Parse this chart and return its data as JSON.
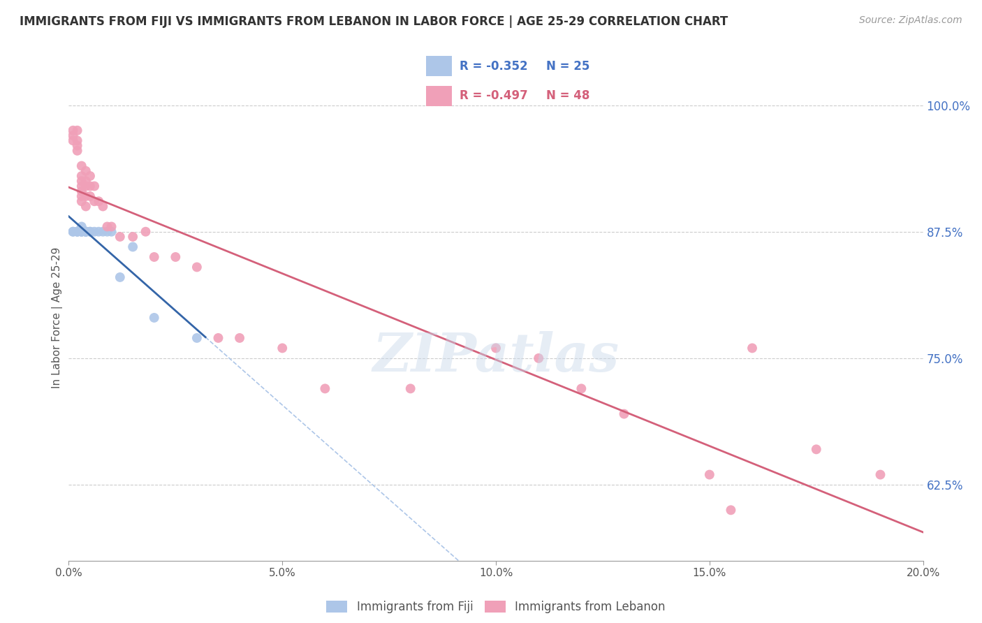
{
  "title": "IMMIGRANTS FROM FIJI VS IMMIGRANTS FROM LEBANON IN LABOR FORCE | AGE 25-29 CORRELATION CHART",
  "source": "Source: ZipAtlas.com",
  "ylabel": "In Labor Force | Age 25-29",
  "x_min": 0.0,
  "x_max": 0.2,
  "y_min": 0.55,
  "y_max": 1.03,
  "y_ticks": [
    0.625,
    0.75,
    0.875,
    1.0
  ],
  "y_tick_labels": [
    "62.5%",
    "75.0%",
    "87.5%",
    "100.0%"
  ],
  "x_ticks": [
    0.0,
    0.05,
    0.1,
    0.15,
    0.2
  ],
  "x_tick_labels": [
    "0.0%",
    "5.0%",
    "10.0%",
    "15.0%",
    "20.0%"
  ],
  "fiji_color": "#adc6e8",
  "lebanon_color": "#f0a0b8",
  "fiji_line_color": "#3465a8",
  "lebanon_line_color": "#d4607a",
  "fiji_dash_color": "#adc6e8",
  "fiji_R": -0.352,
  "fiji_N": 25,
  "lebanon_R": -0.497,
  "lebanon_N": 48,
  "watermark": "ZIPatlas",
  "fiji_x": [
    0.001,
    0.001,
    0.002,
    0.002,
    0.002,
    0.003,
    0.003,
    0.003,
    0.003,
    0.004,
    0.004,
    0.004,
    0.004,
    0.004,
    0.005,
    0.005,
    0.006,
    0.007,
    0.008,
    0.009,
    0.01,
    0.012,
    0.015,
    0.02,
    0.03
  ],
  "fiji_y": [
    0.875,
    0.875,
    0.875,
    0.875,
    0.875,
    0.875,
    0.875,
    0.88,
    0.875,
    0.875,
    0.875,
    0.875,
    0.875,
    0.875,
    0.875,
    0.875,
    0.875,
    0.875,
    0.875,
    0.875,
    0.875,
    0.83,
    0.86,
    0.79,
    0.77
  ],
  "lebanon_x": [
    0.001,
    0.001,
    0.001,
    0.002,
    0.002,
    0.002,
    0.002,
    0.003,
    0.003,
    0.003,
    0.003,
    0.003,
    0.003,
    0.003,
    0.004,
    0.004,
    0.004,
    0.004,
    0.004,
    0.005,
    0.005,
    0.005,
    0.006,
    0.006,
    0.007,
    0.008,
    0.009,
    0.01,
    0.012,
    0.015,
    0.018,
    0.02,
    0.025,
    0.03,
    0.035,
    0.04,
    0.05,
    0.06,
    0.08,
    0.1,
    0.11,
    0.12,
    0.13,
    0.15,
    0.155,
    0.16,
    0.175,
    0.19
  ],
  "lebanon_y": [
    0.975,
    0.97,
    0.965,
    0.975,
    0.965,
    0.96,
    0.955,
    0.94,
    0.93,
    0.925,
    0.92,
    0.915,
    0.91,
    0.905,
    0.935,
    0.925,
    0.92,
    0.91,
    0.9,
    0.93,
    0.92,
    0.91,
    0.92,
    0.905,
    0.905,
    0.9,
    0.88,
    0.88,
    0.87,
    0.87,
    0.875,
    0.85,
    0.85,
    0.84,
    0.77,
    0.77,
    0.76,
    0.72,
    0.72,
    0.76,
    0.75,
    0.72,
    0.695,
    0.635,
    0.6,
    0.76,
    0.66,
    0.635
  ],
  "fiji_line_x_end": 0.032,
  "lebanon_line_x_start": 0.0,
  "lebanon_line_x_end": 0.2
}
